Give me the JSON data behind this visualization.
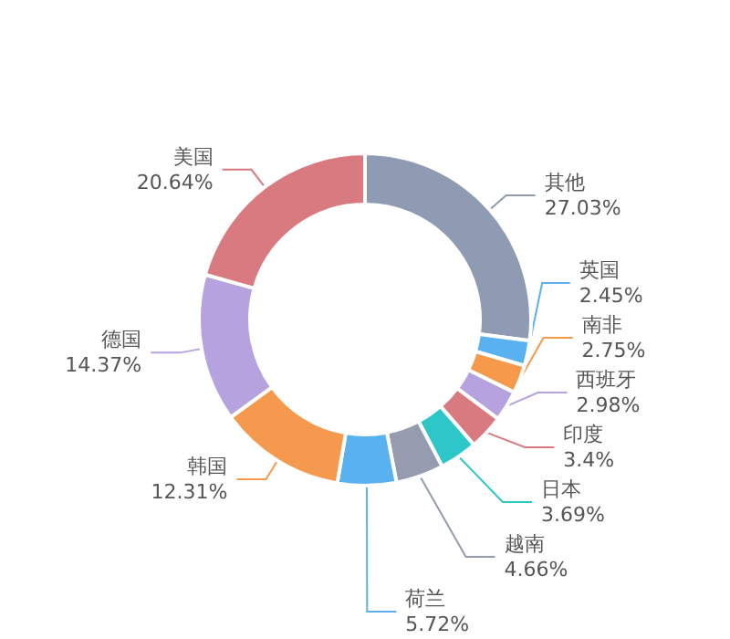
{
  "chart_data": {
    "type": "donut",
    "categories": [
      "其他",
      "英国",
      "南非",
      "西班牙",
      "印度",
      "日本",
      "越南",
      "荷兰",
      "韩国",
      "德国",
      "美国"
    ],
    "values": [
      27.03,
      2.45,
      2.75,
      2.98,
      3.4,
      3.69,
      4.66,
      5.72,
      12.31,
      14.37,
      20.64
    ],
    "value_labels": [
      "27.03%",
      "2.45%",
      "2.75%",
      "2.98%",
      "3.4%",
      "3.69%",
      "4.66%",
      "5.72%",
      "12.31%",
      "14.37%",
      "20.64%"
    ],
    "colors": [
      "#8f9bb3",
      "#5ab1ef",
      "#f59a4b",
      "#b6a2de",
      "#d87a80",
      "#2ec7c9",
      "#959cb0",
      "#5ab1ef",
      "#f5994e",
      "#b6a2de",
      "#d87a80"
    ]
  }
}
